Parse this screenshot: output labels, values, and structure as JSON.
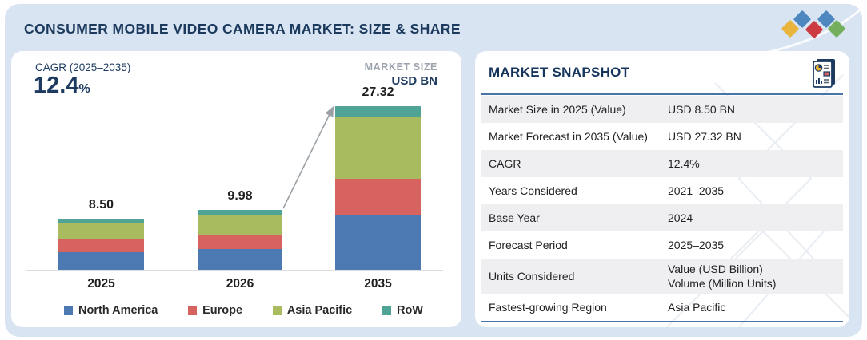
{
  "header": {
    "title": "CONSUMER MOBILE VIDEO CAMERA MARKET: SIZE & SHARE",
    "logo_colors": [
      "#e8b43c",
      "#4e87c0",
      "#4e87c0",
      "#74b05c",
      "#cb3b41"
    ]
  },
  "chart_panel": {
    "cagr_label": "CAGR (2025–2035)",
    "cagr_value": "12.4",
    "cagr_unit": "%",
    "market_size_label": "MARKET SIZE",
    "market_size_unit": "USD BN"
  },
  "chart_data": {
    "type": "bar",
    "stacked": true,
    "title": "Consumer Mobile Video Camera Market Size",
    "ylabel": "USD BN",
    "ylim": [
      0,
      28
    ],
    "grid": false,
    "legend_position": "bottom",
    "categories": [
      "2025",
      "2026",
      "2035"
    ],
    "totals": [
      8.5,
      9.98,
      27.32
    ],
    "total_labels": [
      "8.50",
      "9.98",
      "27.32"
    ],
    "series": [
      {
        "name": "North America",
        "color": "#4d79b2",
        "values": [
          2.95,
          3.5,
          9.2
        ]
      },
      {
        "name": "Europe",
        "color": "#d6635f",
        "values": [
          2.1,
          2.4,
          6.0
        ]
      },
      {
        "name": "Asia Pacific",
        "color": "#a8bc5f",
        "values": [
          2.7,
          3.3,
          10.4
        ]
      },
      {
        "name": "RoW",
        "color": "#4fa496",
        "values": [
          0.75,
          0.78,
          1.72
        ]
      }
    ],
    "annotation": "arrow from 2026 bar top to 2035 bar top"
  },
  "snapshot": {
    "title": "MARKET SNAPSHOT",
    "rows": [
      {
        "label": "Market Size in 2025 (Value)",
        "value": "USD 8.50 BN"
      },
      {
        "label": "Market Forecast in 2035 (Value)",
        "value": "USD 27.32 BN"
      },
      {
        "label": "CAGR",
        "value": "12.4%"
      },
      {
        "label": "Years Considered",
        "value": "2021–2035"
      },
      {
        "label": "Base Year",
        "value": "2024"
      },
      {
        "label": "Forecast Period",
        "value": "2025–2035"
      },
      {
        "label": "Units Considered",
        "value": "Value (USD Billion)",
        "value2": "Volume (Million Units)"
      },
      {
        "label": "Fastest-growing Region",
        "value": "Asia Pacific"
      }
    ]
  }
}
